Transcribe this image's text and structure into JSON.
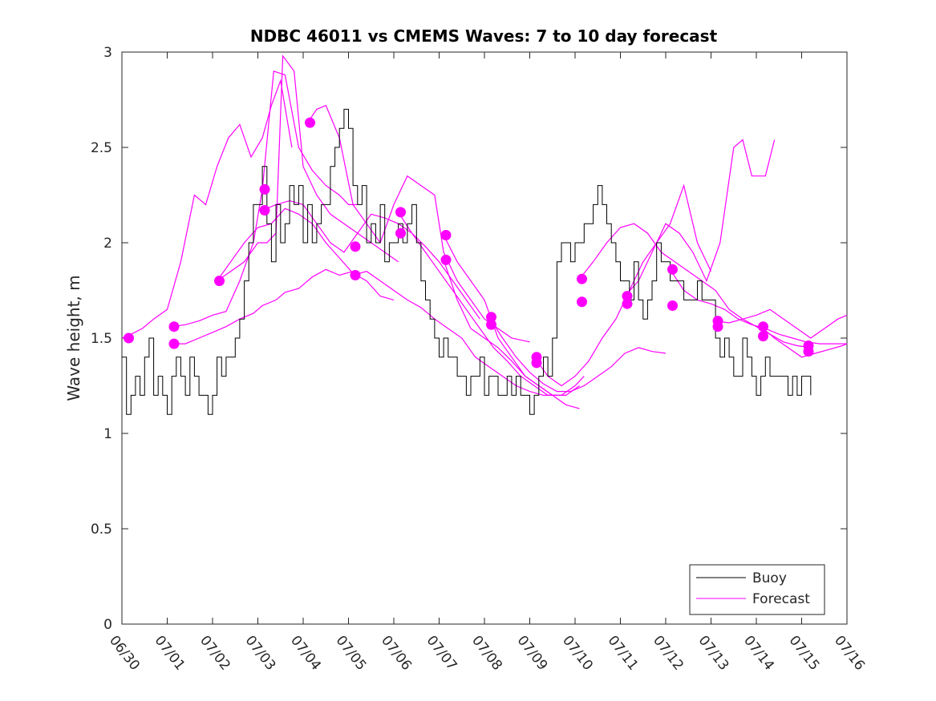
{
  "chart_data": {
    "type": "line",
    "title": "NDBC 46011 vs CMEMS Waves: 7 to 10 day forecast",
    "xlabel": "",
    "ylabel": "Wave height, m",
    "xlim": [
      0,
      16
    ],
    "ylim": [
      0,
      3
    ],
    "x_tick_labels": [
      "06/30",
      "07/01",
      "07/02",
      "07/03",
      "07/04",
      "07/05",
      "07/06",
      "07/07",
      "07/08",
      "07/09",
      "07/10",
      "07/11",
      "07/12",
      "07/13",
      "07/14",
      "07/15",
      "07/16"
    ],
    "y_tick_labels": [
      "0",
      "0.5",
      "1",
      "1.5",
      "2",
      "2.5",
      "3"
    ],
    "y_ticks": [
      0,
      0.5,
      1,
      1.5,
      2,
      2.5,
      3
    ],
    "grid": false,
    "legend_position": "bottom-right",
    "colors": {
      "buoy": "#000000",
      "forecast": "#ff00ff"
    },
    "buoy": {
      "name": "Buoy",
      "x": [
        0.0,
        0.1,
        0.2,
        0.3,
        0.4,
        0.5,
        0.6,
        0.7,
        0.8,
        0.9,
        1.0,
        1.1,
        1.2,
        1.3,
        1.4,
        1.5,
        1.6,
        1.7,
        1.8,
        1.9,
        2.0,
        2.1,
        2.2,
        2.3,
        2.4,
        2.5,
        2.6,
        2.7,
        2.8,
        2.9,
        3.0,
        3.1,
        3.2,
        3.3,
        3.4,
        3.5,
        3.6,
        3.7,
        3.8,
        3.9,
        4.0,
        4.1,
        4.2,
        4.3,
        4.4,
        4.5,
        4.6,
        4.7,
        4.8,
        4.9,
        5.0,
        5.1,
        5.2,
        5.3,
        5.4,
        5.5,
        5.6,
        5.7,
        5.8,
        5.9,
        6.0,
        6.1,
        6.2,
        6.3,
        6.4,
        6.5,
        6.6,
        6.7,
        6.8,
        6.9,
        7.0,
        7.1,
        7.2,
        7.3,
        7.4,
        7.5,
        7.6,
        7.7,
        7.8,
        7.9,
        8.0,
        8.1,
        8.2,
        8.3,
        8.4,
        8.5,
        8.6,
        8.7,
        8.8,
        8.9,
        9.0,
        9.1,
        9.2,
        9.3,
        9.4,
        9.5,
        9.6,
        9.7,
        9.8,
        9.9,
        10.0,
        10.1,
        10.2,
        10.3,
        10.4,
        10.5,
        10.6,
        10.7,
        10.8,
        10.9,
        11.0,
        11.1,
        11.2,
        11.3,
        11.4,
        11.5,
        11.6,
        11.7,
        11.8,
        11.9,
        12.0,
        12.1,
        12.2,
        12.3,
        12.4,
        12.5,
        12.6,
        12.7,
        12.8,
        12.9,
        13.0,
        13.1,
        13.2,
        13.3,
        13.4,
        13.5,
        13.6,
        13.7,
        13.8,
        13.9,
        14.0,
        14.1,
        14.2,
        14.3,
        14.4,
        14.5,
        14.6,
        14.7,
        14.8,
        14.9,
        15.0,
        15.1,
        15.2
      ],
      "y": [
        1.4,
        1.1,
        1.2,
        1.3,
        1.2,
        1.4,
        1.5,
        1.2,
        1.3,
        1.2,
        1.1,
        1.3,
        1.4,
        1.3,
        1.2,
        1.4,
        1.3,
        1.2,
        1.2,
        1.1,
        1.2,
        1.4,
        1.3,
        1.4,
        1.4,
        1.5,
        1.6,
        1.8,
        2.0,
        2.2,
        2.2,
        2.4,
        2.1,
        1.9,
        2.2,
        2.0,
        2.1,
        2.3,
        2.2,
        2.3,
        2.0,
        2.2,
        2.0,
        2.1,
        2.2,
        2.2,
        2.4,
        2.5,
        2.6,
        2.7,
        2.6,
        2.3,
        2.2,
        2.3,
        2.0,
        2.1,
        2.0,
        2.2,
        1.9,
        2.0,
        2.0,
        2.1,
        2.0,
        2.1,
        2.2,
        2.0,
        1.8,
        1.7,
        1.6,
        1.5,
        1.4,
        1.5,
        1.4,
        1.4,
        1.3,
        1.3,
        1.2,
        1.3,
        1.3,
        1.4,
        1.2,
        1.3,
        1.3,
        1.2,
        1.2,
        1.3,
        1.2,
        1.3,
        1.2,
        1.2,
        1.1,
        1.2,
        1.3,
        1.4,
        1.3,
        1.5,
        1.9,
        2.0,
        2.0,
        1.9,
        2.0,
        2.0,
        2.1,
        2.1,
        2.2,
        2.3,
        2.2,
        2.1,
        2.0,
        1.9,
        1.8,
        1.8,
        1.7,
        1.9,
        1.7,
        1.6,
        1.7,
        1.8,
        2.0,
        1.9,
        1.9,
        1.8,
        1.8,
        1.8,
        1.7,
        1.7,
        1.7,
        1.8,
        1.7,
        1.7,
        1.7,
        1.5,
        1.4,
        1.5,
        1.4,
        1.3,
        1.3,
        1.5,
        1.4,
        1.3,
        1.2,
        1.3,
        1.4,
        1.3,
        1.3,
        1.3,
        1.3,
        1.2,
        1.3,
        1.2,
        1.3,
        1.3,
        1.2
      ]
    },
    "forecast": {
      "name": "Forecast",
      "series": [
        {
          "x": [
            0.0,
            0.2,
            0.45,
            0.7,
            1.0,
            1.3,
            1.6,
            1.85,
            2.1,
            2.35,
            2.6,
            2.85,
            3.1,
            3.3,
            3.5,
            3.75
          ],
          "y": [
            1.5,
            1.52,
            1.55,
            1.6,
            1.65,
            1.9,
            2.25,
            2.2,
            2.4,
            2.55,
            2.62,
            2.45,
            2.55,
            2.72,
            2.85,
            2.5
          ]
        },
        {
          "x": [
            1.1,
            1.4,
            1.7,
            2.0,
            2.3,
            2.6,
            2.9,
            3.1,
            3.35,
            3.6,
            3.9,
            4.2,
            4.5,
            4.8,
            5.0,
            5.2
          ],
          "y": [
            1.56,
            1.57,
            1.59,
            1.62,
            1.64,
            1.8,
            2.0,
            2.28,
            2.9,
            2.88,
            2.5,
            2.38,
            2.3,
            2.25,
            2.2,
            2.2
          ]
        },
        {
          "x": [
            1.1,
            1.4,
            1.7,
            2.0,
            2.3,
            2.6,
            2.9,
            3.1,
            3.4,
            3.6,
            3.9,
            4.2,
            4.5,
            4.8,
            5.1
          ],
          "y": [
            1.47,
            1.47,
            1.5,
            1.53,
            1.56,
            1.6,
            1.63,
            1.67,
            1.7,
            1.74,
            1.76,
            1.82,
            1.86,
            1.83,
            1.85
          ]
        },
        {
          "x": [
            2.1,
            2.4,
            2.7,
            3.0,
            3.3,
            3.6,
            3.9,
            4.2,
            4.5,
            4.8,
            5.1,
            5.4,
            5.7,
            6.0
          ],
          "y": [
            1.8,
            1.9,
            2.0,
            2.08,
            2.1,
            2.18,
            2.15,
            2.1,
            2.0,
            1.92,
            1.84,
            1.8,
            1.72,
            1.7
          ]
        },
        {
          "x": [
            2.1,
            2.4,
            2.7,
            3.0,
            3.2,
            3.4,
            3.55,
            3.8,
            4.0,
            4.3,
            4.6,
            4.9,
            5.2,
            5.5,
            5.8,
            6.1
          ],
          "y": [
            1.8,
            1.85,
            1.9,
            2.0,
            2.0,
            2.05,
            2.98,
            2.9,
            2.4,
            2.25,
            2.15,
            2.1,
            2.05,
            2.0,
            1.95,
            1.9
          ]
        },
        {
          "x": [
            3.1,
            3.4,
            3.7,
            4.0,
            4.3,
            4.6,
            4.9,
            5.2,
            5.5,
            5.8,
            6.1,
            6.4,
            6.7,
            7.0,
            7.3,
            7.6,
            7.9
          ],
          "y": [
            2.17,
            2.2,
            2.22,
            2.2,
            2.1,
            2.0,
            1.95,
            2.05,
            2.15,
            2.13,
            2.1,
            2.05,
            1.98,
            1.9,
            1.8,
            1.7,
            1.6
          ]
        },
        {
          "x": [
            4.1,
            4.3,
            4.5,
            4.8,
            5.1,
            5.4,
            5.7,
            6.0,
            6.3,
            6.6,
            6.9,
            7.1,
            7.4,
            7.7,
            8.0,
            8.3,
            8.6,
            9.0
          ],
          "y": [
            2.63,
            2.7,
            2.72,
            2.55,
            2.2,
            2.1,
            2.0,
            2.2,
            2.35,
            2.3,
            2.25,
            1.95,
            1.8,
            1.7,
            1.6,
            1.55,
            1.5,
            1.48
          ]
        },
        {
          "x": [
            5.1,
            5.4,
            5.7,
            6.0,
            6.3,
            6.6,
            6.9,
            7.2,
            7.5,
            7.8,
            8.1,
            8.4,
            8.7,
            9.0,
            9.3,
            9.6
          ],
          "y": [
            1.83,
            1.85,
            1.8,
            1.75,
            1.7,
            1.66,
            1.6,
            1.55,
            1.5,
            1.4,
            1.35,
            1.3,
            1.25,
            1.22,
            1.2,
            1.2
          ]
        },
        {
          "x": [
            6.1,
            6.4,
            6.7,
            7.0,
            7.3,
            7.6,
            7.9,
            8.2,
            8.5,
            8.8,
            9.1,
            9.4,
            9.7,
            10.0,
            10.2
          ],
          "y": [
            2.16,
            2.05,
            1.95,
            1.85,
            1.75,
            1.65,
            1.55,
            1.45,
            1.38,
            1.3,
            1.25,
            1.2,
            1.2,
            1.25,
            1.3
          ]
        },
        {
          "x": [
            7.1,
            7.4,
            7.7,
            8.0,
            8.3,
            8.6,
            8.9,
            9.2,
            9.5,
            9.8,
            10.1
          ],
          "y": [
            2.04,
            1.9,
            1.8,
            1.7,
            1.5,
            1.4,
            1.3,
            1.25,
            1.2,
            1.2,
            1.25
          ]
        },
        {
          "x": [
            7.1,
            7.4,
            7.7,
            8.0,
            8.3,
            8.6,
            8.9,
            9.2,
            9.5,
            9.8,
            10.1
          ],
          "y": [
            1.91,
            1.7,
            1.55,
            1.5,
            1.45,
            1.38,
            1.3,
            1.25,
            1.2,
            1.15,
            1.13
          ]
        },
        {
          "x": [
            8.1,
            8.4,
            8.7,
            9.0,
            9.3,
            9.6,
            9.9,
            10.2,
            10.5,
            10.8,
            11.1,
            11.4,
            11.7,
            12.0
          ],
          "y": [
            1.61,
            1.5,
            1.4,
            1.32,
            1.26,
            1.22,
            1.22,
            1.25,
            1.3,
            1.35,
            1.42,
            1.45,
            1.43,
            1.42
          ]
        },
        {
          "x": [
            9.1,
            9.4,
            9.7,
            10.0,
            10.3,
            10.6,
            10.9,
            11.2,
            11.5,
            11.8,
            12.1,
            12.4,
            12.7,
            13.0
          ],
          "y": [
            1.4,
            1.3,
            1.25,
            1.3,
            1.38,
            1.5,
            1.6,
            1.75,
            1.9,
            2.0,
            2.1,
            2.3,
            2.0,
            1.85
          ]
        },
        {
          "x": [
            10.1,
            10.4,
            10.7,
            11.0,
            11.3,
            11.6,
            11.9,
            12.2,
            12.5,
            12.8,
            13.1,
            13.4,
            13.7,
            14.0,
            14.3,
            14.6,
            14.9,
            15.2
          ],
          "y": [
            1.81,
            1.9,
            2.0,
            2.08,
            2.1,
            2.05,
            1.95,
            1.9,
            1.85,
            1.8,
            1.75,
            1.65,
            1.6,
            1.56,
            1.52,
            1.48,
            1.46,
            1.45
          ]
        },
        {
          "x": [
            11.1,
            11.4,
            11.7,
            12.0,
            12.3,
            12.6,
            12.9,
            13.2,
            13.5,
            13.7,
            13.9,
            14.2,
            14.4
          ],
          "y": [
            1.72,
            1.8,
            1.95,
            2.1,
            2.05,
            1.95,
            1.8,
            2.0,
            2.5,
            2.54,
            2.35,
            2.35,
            2.54
          ]
        },
        {
          "x": [
            12.1,
            12.4,
            12.7,
            13.0,
            13.3,
            13.6,
            13.9,
            14.2,
            14.5,
            14.8,
            15.1,
            15.4,
            15.7,
            16.0
          ],
          "y": [
            1.86,
            1.75,
            1.7,
            1.68,
            1.65,
            1.6,
            1.57,
            1.55,
            1.52,
            1.5,
            1.48,
            1.47,
            1.47,
            1.47
          ]
        },
        {
          "x": [
            13.1,
            13.4,
            13.7,
            14.0,
            14.3,
            14.6,
            14.9,
            15.2,
            15.5,
            15.8,
            16.0
          ],
          "y": [
            1.59,
            1.58,
            1.6,
            1.62,
            1.65,
            1.6,
            1.55,
            1.5,
            1.55,
            1.6,
            1.62
          ]
        },
        {
          "x": [
            14.1,
            14.4,
            14.7,
            15.0,
            15.3,
            15.6,
            15.9,
            16.0
          ],
          "y": [
            1.56,
            1.5,
            1.45,
            1.4,
            1.42,
            1.44,
            1.46,
            1.47
          ]
        }
      ],
      "markers": {
        "x": [
          0.15,
          1.15,
          1.15,
          2.15,
          3.15,
          3.15,
          4.15,
          5.15,
          5.15,
          6.15,
          6.15,
          7.15,
          7.15,
          8.15,
          8.15,
          9.15,
          9.15,
          10.15,
          10.15,
          11.15,
          11.15,
          12.15,
          12.15,
          13.15,
          13.15,
          14.15,
          14.15,
          15.15,
          15.15
        ],
        "y": [
          1.5,
          1.56,
          1.47,
          1.8,
          2.28,
          2.17,
          2.63,
          1.98,
          1.83,
          2.16,
          2.05,
          2.04,
          1.91,
          1.61,
          1.57,
          1.4,
          1.37,
          1.81,
          1.69,
          1.72,
          1.68,
          1.86,
          1.67,
          1.59,
          1.56,
          1.56,
          1.51,
          1.46,
          1.43
        ]
      }
    },
    "legend": [
      {
        "label": "Buoy",
        "color": "#000000"
      },
      {
        "label": "Forecast",
        "color": "#ff00ff"
      }
    ]
  }
}
